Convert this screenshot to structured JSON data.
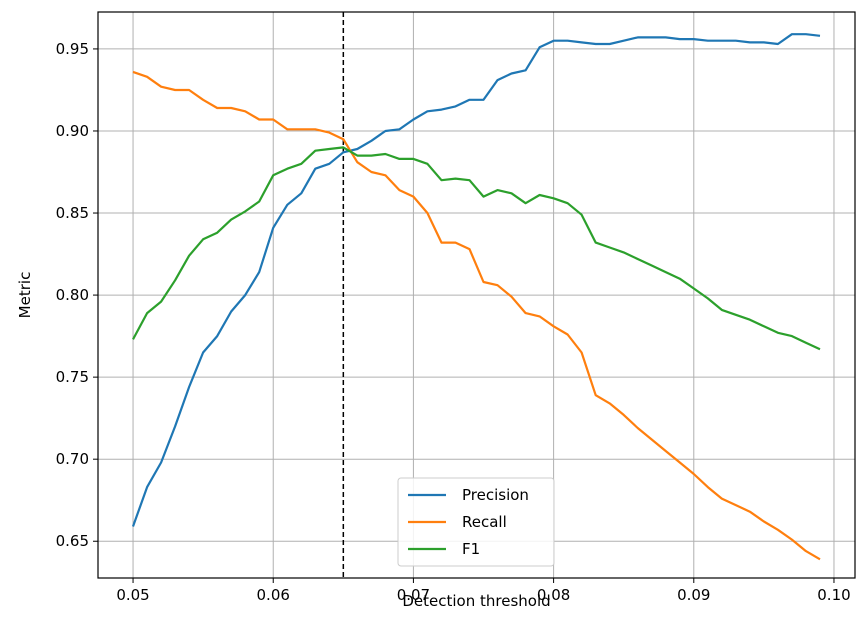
{
  "chart_data": {
    "type": "line",
    "xlabel": "Detection threshold",
    "ylabel": "Metric",
    "xlim": [
      0.0475,
      0.1015
    ],
    "ylim": [
      0.6276,
      0.9725
    ],
    "xticks": [
      0.05,
      0.06,
      0.07,
      0.08,
      0.09,
      0.1
    ],
    "xtick_labels": [
      "0.05",
      "0.06",
      "0.07",
      "0.08",
      "0.09",
      "0.10"
    ],
    "yticks": [
      0.65,
      0.7,
      0.75,
      0.8,
      0.85,
      0.9,
      0.95
    ],
    "ytick_labels": [
      "0.65",
      "0.70",
      "0.75",
      "0.80",
      "0.85",
      "0.90",
      "0.95"
    ],
    "grid": true,
    "legend_position": "lower-center",
    "vline": {
      "x": 0.065,
      "style": "dashed",
      "color": "#000000"
    },
    "x": [
      0.05,
      0.051,
      0.052,
      0.053,
      0.054,
      0.055,
      0.056,
      0.057,
      0.058,
      0.059,
      0.06,
      0.061,
      0.062,
      0.063,
      0.064,
      0.065,
      0.066,
      0.067,
      0.068,
      0.069,
      0.07,
      0.071,
      0.072,
      0.073,
      0.074,
      0.075,
      0.076,
      0.077,
      0.078,
      0.079,
      0.08,
      0.081,
      0.082,
      0.083,
      0.084,
      0.085,
      0.086,
      0.087,
      0.088,
      0.089,
      0.09,
      0.091,
      0.092,
      0.093,
      0.094,
      0.095,
      0.096,
      0.097,
      0.098,
      0.099
    ],
    "series": [
      {
        "name": "Precision",
        "color": "#1f77b4",
        "values": [
          0.659,
          0.683,
          0.698,
          0.72,
          0.744,
          0.765,
          0.775,
          0.79,
          0.8,
          0.814,
          0.841,
          0.855,
          0.862,
          0.877,
          0.88,
          0.887,
          0.889,
          0.894,
          0.9,
          0.901,
          0.907,
          0.912,
          0.913,
          0.915,
          0.919,
          0.919,
          0.931,
          0.935,
          0.937,
          0.951,
          0.955,
          0.955,
          0.954,
          0.953,
          0.953,
          0.955,
          0.957,
          0.957,
          0.957,
          0.956,
          0.956,
          0.955,
          0.955,
          0.955,
          0.954,
          0.954,
          0.953,
          0.959,
          0.959,
          0.958
        ]
      },
      {
        "name": "Recall",
        "color": "#ff7f0e",
        "values": [
          0.936,
          0.933,
          0.927,
          0.925,
          0.925,
          0.919,
          0.914,
          0.914,
          0.912,
          0.907,
          0.907,
          0.901,
          0.901,
          0.901,
          0.899,
          0.895,
          0.881,
          0.875,
          0.873,
          0.864,
          0.86,
          0.85,
          0.832,
          0.832,
          0.828,
          0.808,
          0.806,
          0.799,
          0.789,
          0.787,
          0.781,
          0.776,
          0.765,
          0.739,
          0.734,
          0.727,
          0.719,
          0.712,
          0.705,
          0.698,
          0.691,
          0.683,
          0.676,
          0.672,
          0.668,
          0.662,
          0.657,
          0.651,
          0.644,
          0.639
        ]
      },
      {
        "name": "F1",
        "color": "#2ca02c",
        "values": [
          0.773,
          0.789,
          0.796,
          0.809,
          0.824,
          0.834,
          0.838,
          0.846,
          0.851,
          0.857,
          0.873,
          0.877,
          0.88,
          0.888,
          0.889,
          0.89,
          0.885,
          0.885,
          0.886,
          0.883,
          0.883,
          0.88,
          0.87,
          0.871,
          0.87,
          0.86,
          0.864,
          0.862,
          0.856,
          0.861,
          0.859,
          0.856,
          0.849,
          0.832,
          0.829,
          0.826,
          0.822,
          0.818,
          0.814,
          0.81,
          0.804,
          0.798,
          0.791,
          0.788,
          0.785,
          0.781,
          0.777,
          0.775,
          0.771,
          0.767
        ]
      }
    ]
  }
}
